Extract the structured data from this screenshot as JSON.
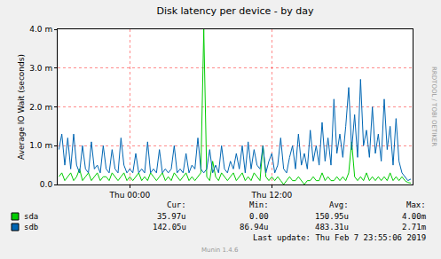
{
  "chart_data": {
    "type": "line",
    "title": "Disk latency per device - by day",
    "y_label": "Average IO Wait (seconds)",
    "watermark": "RRDTOOL / TOBI OETIKER",
    "footer": "Last update: Thu Feb 7 23:55:06 2019",
    "credit": "Munin 1.4.6",
    "grid": true,
    "xlim": [
      -6.1,
      23.9
    ],
    "xticks": [
      {
        "value": 0,
        "label": "Thu 00:00"
      },
      {
        "value": 12,
        "label": "Thu 12:00"
      }
    ],
    "ylim": [
      0,
      0.004
    ],
    "yticks": [
      {
        "value": 0,
        "label": "0.0"
      },
      {
        "value": 0.001,
        "label": "1.0 m"
      },
      {
        "value": 0.002,
        "label": "2.0 m"
      },
      {
        "value": 0.003,
        "label": "3.0 m"
      },
      {
        "value": 0.004,
        "label": "4.0 m"
      }
    ],
    "stats_columns": [
      "Cur:",
      "Min:",
      "Avg:",
      "Max:"
    ],
    "x": [
      -6,
      -5.75,
      -5.5,
      -5.25,
      -5,
      -4.75,
      -4.5,
      -4.25,
      -4,
      -3.75,
      -3.5,
      -3.25,
      -3,
      -2.75,
      -2.5,
      -2.25,
      -2,
      -1.75,
      -1.5,
      -1.25,
      -1,
      -0.75,
      -0.5,
      -0.25,
      0,
      0.25,
      0.5,
      0.75,
      1,
      1.25,
      1.5,
      1.75,
      2,
      2.25,
      2.5,
      2.75,
      3,
      3.25,
      3.5,
      3.75,
      4,
      4.25,
      4.5,
      4.75,
      5,
      5.25,
      5.5,
      5.75,
      6,
      6.25,
      6.5,
      6.75,
      7,
      7.25,
      7.5,
      7.75,
      8,
      8.25,
      8.5,
      8.75,
      9,
      9.25,
      9.5,
      9.75,
      10,
      10.25,
      10.5,
      10.75,
      11,
      11.25,
      11.5,
      11.75,
      12,
      12.25,
      12.5,
      12.75,
      13,
      13.25,
      13.5,
      13.75,
      14,
      14.25,
      14.5,
      14.75,
      15,
      15.25,
      15.5,
      15.75,
      16,
      16.25,
      16.5,
      16.75,
      17,
      17.25,
      17.5,
      17.75,
      18,
      18.25,
      18.5,
      18.75,
      19,
      19.25,
      19.5,
      19.75,
      20,
      20.25,
      20.5,
      20.75,
      21,
      21.25,
      21.5,
      21.75,
      22,
      22.25,
      22.5,
      22.75,
      23,
      23.25,
      23.5,
      23.75
    ],
    "series": [
      {
        "name": "sda",
        "color": "#00cc00",
        "stats": [
          "35.97u",
          "0.00",
          "150.95u",
          "4.00m"
        ],
        "values": [
          0.0002,
          0.0003,
          0.0001,
          0.0002,
          0.0003,
          0.0001,
          0.0002,
          0.0004,
          0.0001,
          0.0002,
          0.0003,
          0.0001,
          0.0002,
          0.0003,
          0.0001,
          0.0002,
          0.0002,
          0.0001,
          0.0003,
          0.0002,
          0.0001,
          0.0002,
          0.0003,
          0.0001,
          0.0002,
          0.0001,
          0.0002,
          0.0003,
          0.0001,
          0.0002,
          0.0001,
          0.0003,
          0.0002,
          0.0001,
          0.0002,
          0.0003,
          0.0001,
          0.0002,
          0.0001,
          0.0003,
          0.0002,
          0.0001,
          0.0002,
          0.0003,
          0.0001,
          0.0002,
          0.0001,
          0.0002,
          0.0003,
          0.004,
          0.0002,
          0.0001,
          0.0006,
          0.0002,
          0.0001,
          0.0003,
          0.0002,
          0.0001,
          0.0002,
          0.0003,
          0.0001,
          0.0002,
          0.0003,
          0.0001,
          0.0002,
          0.0001,
          0.0003,
          0.0002,
          0.0001,
          0.001,
          0.0002,
          0.0001,
          0.0002,
          0.0001,
          0.0002,
          0.0001,
          0.0,
          0.0001,
          0.0002,
          0.0001,
          0.0001,
          0.0002,
          0.0001,
          0.0,
          0.0001,
          0.0001,
          0.0002,
          0.0001,
          0.0001,
          0.0003,
          0.0001,
          0.0002,
          0.0001,
          0.0001,
          0.0002,
          0.0001,
          0.0002,
          0.0001,
          0.0003,
          0.0011,
          0.0002,
          0.0001,
          0.0002,
          0.0001,
          0.0003,
          0.0001,
          0.0002,
          0.0001,
          0.0002,
          0.0001,
          0.0002,
          0.0001,
          0.0003,
          0.0001,
          0.0002,
          0.0001,
          0.0002,
          0.0001,
          5e-05,
          3.6e-05
        ]
      },
      {
        "name": "sdb",
        "color": "#0066b3",
        "stats": [
          "142.05u",
          "86.94u",
          "483.31u",
          "2.71m"
        ],
        "values": [
          0.0009,
          0.0013,
          0.0005,
          0.0012,
          0.0004,
          0.0013,
          0.0005,
          0.0003,
          0.001,
          0.0004,
          0.0003,
          0.0011,
          0.0004,
          0.0005,
          0.0003,
          0.001,
          0.0004,
          0.0003,
          0.0009,
          0.0004,
          0.0003,
          0.0012,
          0.0005,
          0.0003,
          0.0004,
          0.0003,
          0.0008,
          0.0003,
          0.0004,
          0.0003,
          0.0011,
          0.0003,
          0.0004,
          0.0003,
          0.0009,
          0.0003,
          0.0004,
          0.0003,
          0.0004,
          0.001,
          0.0003,
          0.0004,
          0.0003,
          0.0008,
          0.0003,
          0.0005,
          0.0004,
          0.0012,
          0.0004,
          0.0003,
          0.0004,
          0.0009,
          0.0003,
          0.0005,
          0.0003,
          0.001,
          0.0004,
          0.0003,
          0.0006,
          0.0004,
          0.0008,
          0.0004,
          0.001,
          0.0003,
          0.0011,
          0.0004,
          0.0009,
          0.0005,
          0.0004,
          0.001,
          0.0003,
          0.0006,
          0.0008,
          0.0003,
          0.0005,
          0.0012,
          0.0004,
          0.0003,
          0.0007,
          0.001,
          0.0004,
          0.0013,
          0.0005,
          0.0008,
          0.0004,
          0.0014,
          0.0006,
          0.001,
          0.0005,
          0.0016,
          0.0006,
          0.0012,
          0.0005,
          0.0022,
          0.0008,
          0.0013,
          0.0007,
          0.0015,
          0.0025,
          0.0009,
          0.0018,
          0.0007,
          0.00271,
          0.001,
          0.0014,
          0.0007,
          0.002,
          0.0008,
          0.0013,
          0.0006,
          0.0022,
          0.0009,
          0.0015,
          0.0005,
          0.0017,
          0.0006,
          0.0003,
          0.0002,
          0.0001,
          0.00014
        ]
      }
    ]
  }
}
